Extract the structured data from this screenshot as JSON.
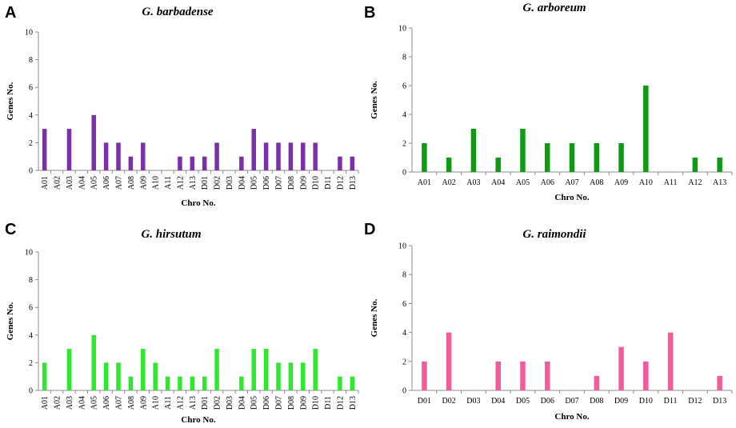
{
  "chart_data": [
    {
      "panel": "A",
      "type": "bar",
      "title": "G. barbadense",
      "xlabel": "Chro No.",
      "ylabel": "Genes No.",
      "ylim": [
        0,
        10
      ],
      "yticks": [
        "0",
        "2",
        "4",
        "6",
        "8",
        "10"
      ],
      "color": "#7B2FA8",
      "categories": [
        "A01",
        "A02",
        "A03",
        "A04",
        "A05",
        "A06",
        "A07",
        "A08",
        "A09",
        "A10",
        "A11",
        "A12",
        "A13",
        "D01",
        "D02",
        "D03",
        "D04",
        "D05",
        "D06",
        "D07",
        "D08",
        "D09",
        "D10",
        "D11",
        "D12",
        "D13"
      ],
      "values": [
        3,
        0,
        3,
        0,
        4,
        2,
        2,
        1,
        2,
        0,
        0,
        1,
        1,
        1,
        2,
        0,
        1,
        3,
        2,
        2,
        2,
        2,
        2,
        0,
        1,
        1
      ]
    },
    {
      "panel": "B",
      "type": "bar",
      "title": "G. arboreum",
      "xlabel": "Chro No.",
      "ylabel": "Genes No.",
      "ylim": [
        0,
        10
      ],
      "yticks": [
        "0",
        "2",
        "4",
        "6",
        "8",
        "10"
      ],
      "color": "#0E9A12",
      "categories": [
        "A01",
        "A02",
        "A03",
        "A04",
        "A05",
        "A06",
        "A07",
        "A08",
        "A09",
        "A10",
        "A11",
        "A12",
        "A13"
      ],
      "values": [
        2,
        1,
        3,
        1,
        3,
        2,
        2,
        2,
        2,
        6,
        0,
        1,
        1
      ]
    },
    {
      "panel": "C",
      "type": "bar",
      "title": "G. hirsutum",
      "xlabel": "Chro No.",
      "ylabel": "Genes No.",
      "ylim": [
        0,
        10
      ],
      "yticks": [
        "0",
        "2",
        "4",
        "6",
        "8",
        "10"
      ],
      "color": "#2EE82E",
      "categories": [
        "A01",
        "A02",
        "A03",
        "A04",
        "A05",
        "A06",
        "A07",
        "A08",
        "A09",
        "A10",
        "A11",
        "A12",
        "A13",
        "D01",
        "D02",
        "D03",
        "D04",
        "D05",
        "D06",
        "D07",
        "D08",
        "D09",
        "D10",
        "D11",
        "D12",
        "D13"
      ],
      "values": [
        2,
        0,
        3,
        0,
        4,
        2,
        2,
        1,
        3,
        2,
        1,
        1,
        1,
        1,
        3,
        0,
        1,
        3,
        3,
        2,
        2,
        2,
        3,
        0,
        1,
        1
      ]
    },
    {
      "panel": "D",
      "type": "bar",
      "title": "G. raimondii",
      "xlabel": "Chro No.",
      "ylabel": "Genes No.",
      "ylim": [
        0,
        10
      ],
      "yticks": [
        "0",
        "2",
        "4",
        "6",
        "8",
        "10"
      ],
      "color": "#F25C9A",
      "categories": [
        "D01",
        "D02",
        "D03",
        "D04",
        "D05",
        "D06",
        "D07",
        "D08",
        "D09",
        "D10",
        "D11",
        "D12",
        "D13"
      ],
      "values": [
        2,
        4,
        0,
        2,
        2,
        2,
        0,
        1,
        3,
        2,
        4,
        0,
        1
      ]
    }
  ]
}
